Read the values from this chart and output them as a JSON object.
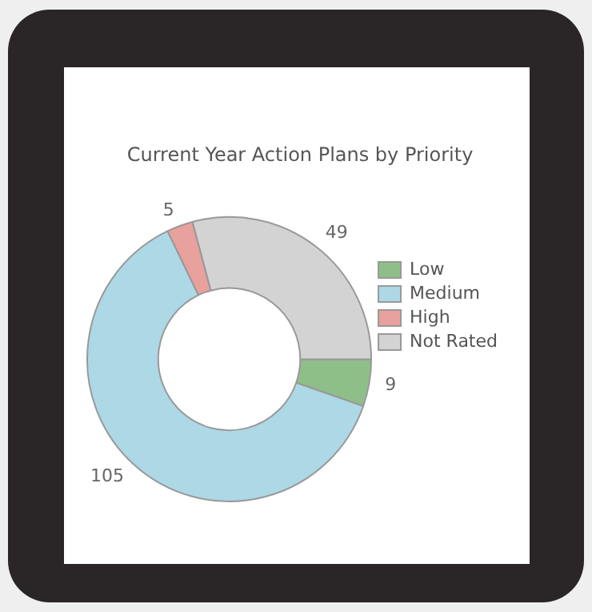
{
  "chart_data": {
    "type": "donut",
    "title": "Current Year Action Plans by Priority",
    "categories": [
      "Low",
      "Medium",
      "High",
      "Not Rated"
    ],
    "values": [
      9,
      105,
      5,
      49
    ],
    "colors": [
      "#8fbf88",
      "#add8e6",
      "#e8a19c",
      "#d3d3d3"
    ],
    "data_labels": true,
    "legend": "right"
  }
}
